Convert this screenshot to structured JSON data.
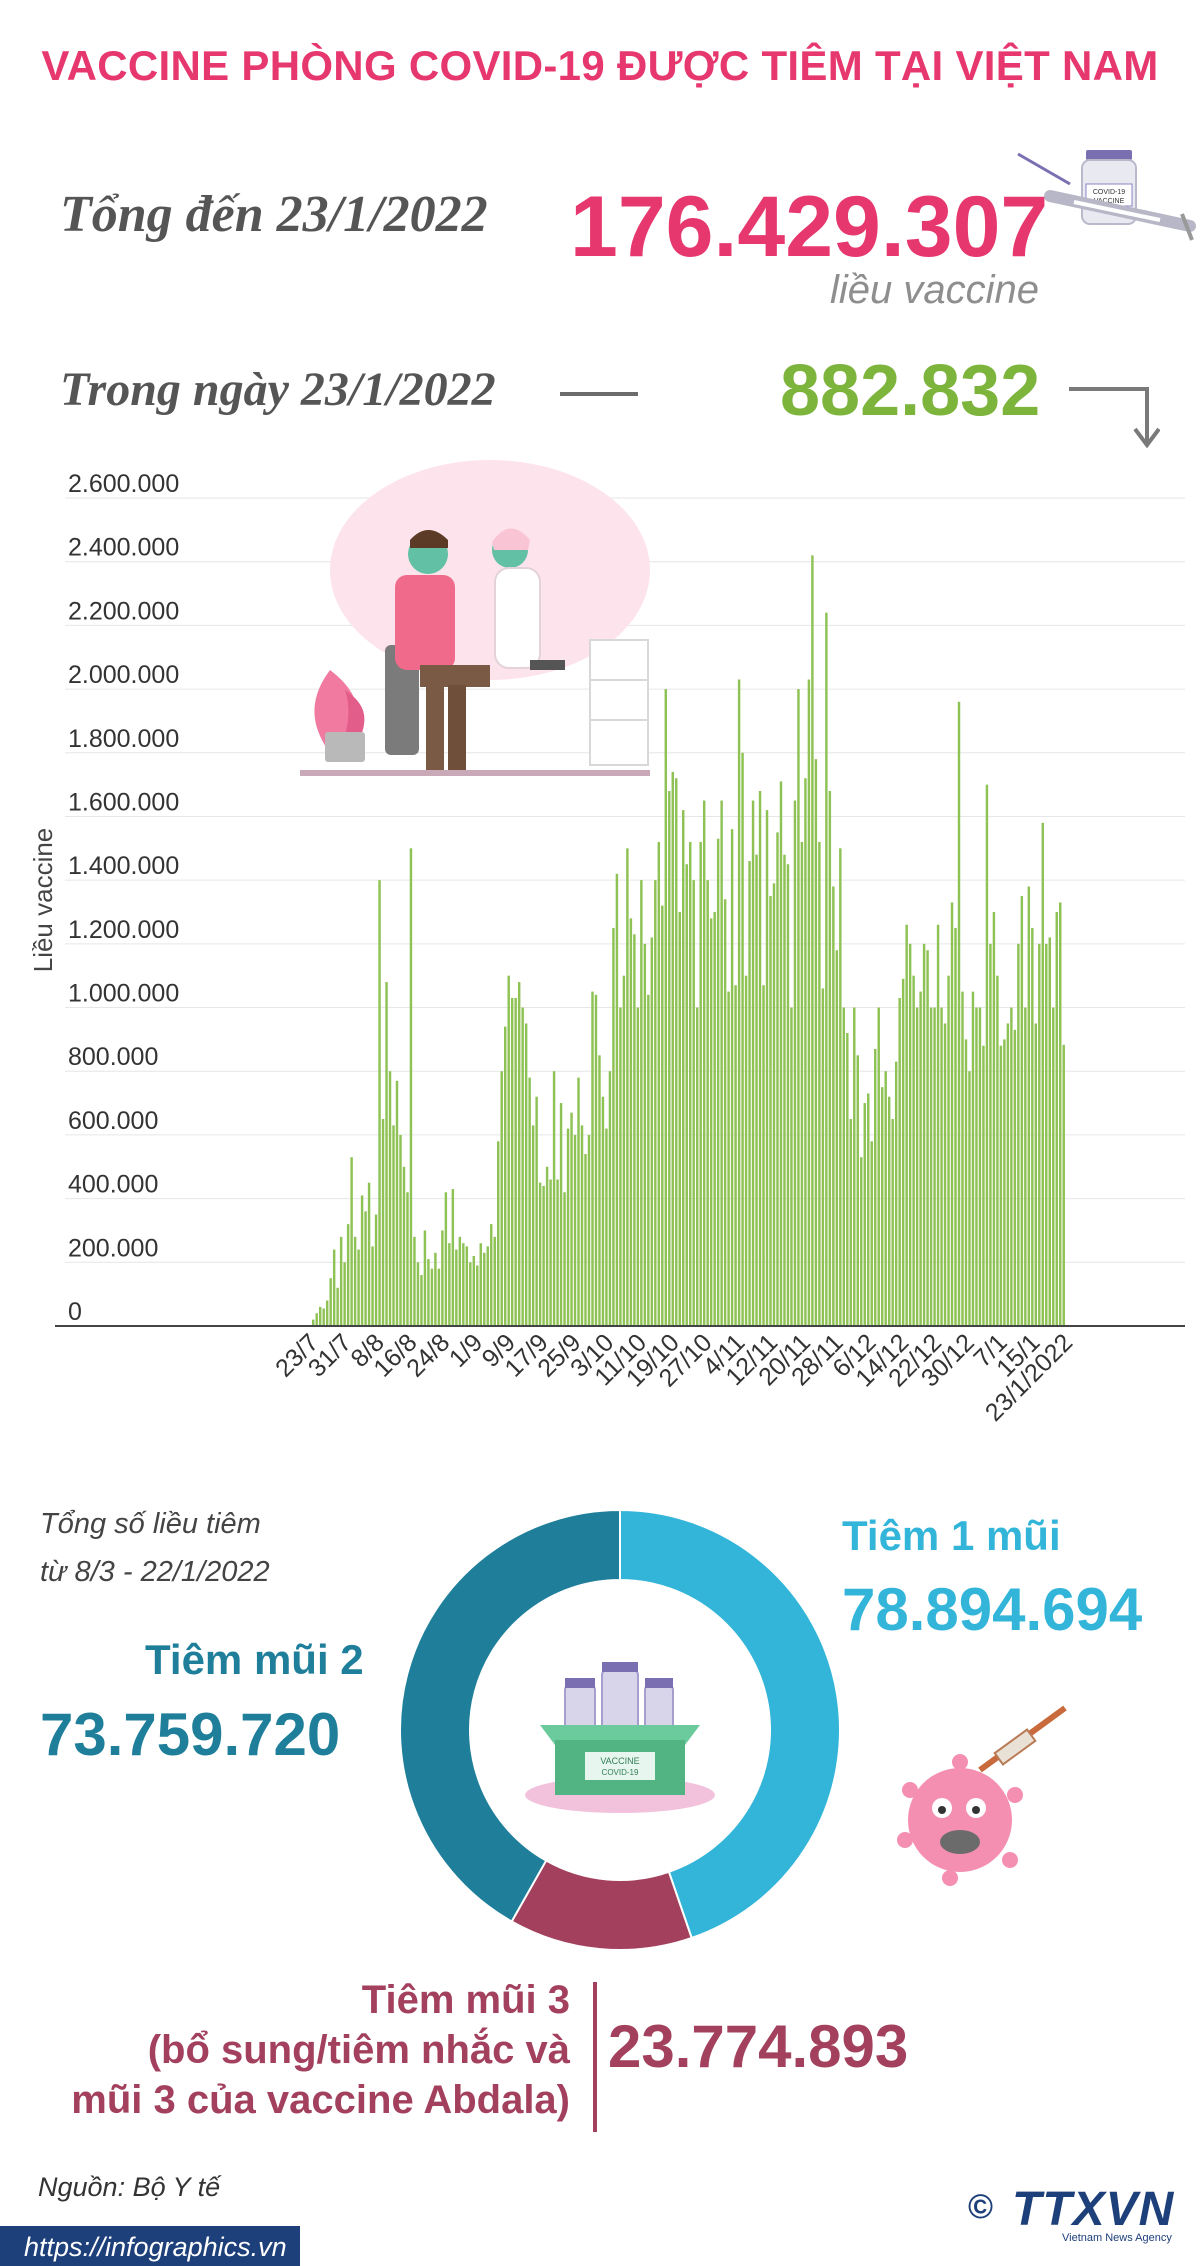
{
  "header": {
    "title": "VACCINE PHÒNG COVID-19 ĐƯỢC TIÊM TẠI VIỆT NAM",
    "total_label": "Tổng đến 23/1/2022",
    "total_value": "176.429.307",
    "total_unit": "liều vaccine",
    "day_label": "Trong ngày 23/1/2022",
    "day_value": "882.832"
  },
  "colors": {
    "title": "#e6386f",
    "bar": "#8ec254",
    "dose1": "#33b5d9",
    "dose2": "#1f7f9b",
    "dose3": "#a2405e"
  },
  "chart_data": [
    {
      "type": "bar",
      "ylabel": "Liều vaccine",
      "ylim": [
        0,
        2600000
      ],
      "yticks": [
        "0",
        "200.000",
        "400.000",
        "600.000",
        "800.000",
        "1.000.000",
        "1.200.000",
        "1.400.000",
        "1.600.000",
        "1.800.000",
        "2.000.000",
        "2.200.000",
        "2.400.000",
        "2.600.000"
      ],
      "x_tick_labels": [
        "23/7",
        "31/7",
        "8/8",
        "16/8",
        "24/8",
        "1/9",
        "9/9",
        "17/9",
        "25/9",
        "3/10",
        "11/10",
        "19/10",
        "27/10",
        "4/11",
        "12/11",
        "20/11",
        "28/11",
        "6/12",
        "14/12",
        "22/12",
        "30/12",
        "7/1",
        "15/1",
        "23/1/2022"
      ],
      "x_start": "23/7/2021",
      "x_end": "23/1/2022",
      "grid": true,
      "values": [
        20000,
        40000,
        60000,
        55000,
        80000,
        150000,
        240000,
        120000,
        280000,
        200000,
        320000,
        530000,
        280000,
        240000,
        410000,
        360000,
        450000,
        250000,
        350000,
        1400000,
        650000,
        1080000,
        800000,
        630000,
        770000,
        600000,
        500000,
        420000,
        1500000,
        280000,
        200000,
        160000,
        300000,
        210000,
        180000,
        230000,
        180000,
        300000,
        420000,
        260000,
        430000,
        240000,
        280000,
        260000,
        250000,
        200000,
        220000,
        190000,
        260000,
        230000,
        250000,
        320000,
        280000,
        580000,
        800000,
        940000,
        1100000,
        1030000,
        1030000,
        1080000,
        1000000,
        950000,
        780000,
        630000,
        720000,
        450000,
        440000,
        500000,
        460000,
        800000,
        460000,
        700000,
        420000,
        620000,
        670000,
        600000,
        780000,
        630000,
        540000,
        600000,
        1050000,
        1040000,
        850000,
        720000,
        620000,
        800000,
        1250000,
        1420000,
        1000000,
        1100000,
        1500000,
        1280000,
        1230000,
        1000000,
        1400000,
        1200000,
        1040000,
        1220000,
        1400000,
        1520000,
        1320000,
        2000000,
        1680000,
        1740000,
        1720000,
        1300000,
        1620000,
        1450000,
        1520000,
        1400000,
        1000000,
        1520000,
        1650000,
        1400000,
        1280000,
        1300000,
        1530000,
        1650000,
        1340000,
        1050000,
        1560000,
        1070000,
        2030000,
        1800000,
        1100000,
        1460000,
        1650000,
        1480000,
        1680000,
        1070000,
        1620000,
        1350000,
        1390000,
        1550000,
        1710000,
        1480000,
        1450000,
        1000000,
        1650000,
        2000000,
        1520000,
        1720000,
        2030000,
        2420000,
        1780000,
        1520000,
        1060000,
        2240000,
        1680000,
        1380000,
        1180000,
        1500000,
        1000000,
        920000,
        650000,
        1000000,
        850000,
        530000,
        700000,
        730000,
        580000,
        870000,
        1000000,
        750000,
        800000,
        720000,
        650000,
        830000,
        1030000,
        1090000,
        1260000,
        1200000,
        1100000,
        1000000,
        1050000,
        1200000,
        1180000,
        1000000,
        1000000,
        1260000,
        1000000,
        950000,
        1100000,
        1330000,
        1250000,
        1960000,
        1050000,
        900000,
        800000,
        1050000,
        1000000,
        1000000,
        880000,
        1700000,
        1200000,
        1300000,
        1100000,
        880000,
        900000,
        950000,
        1000000,
        930000,
        1200000,
        1350000,
        1000000,
        1380000,
        1250000,
        950000,
        1200000,
        1580000,
        1200000,
        1220000,
        1000000,
        1300000,
        1330000,
        882832
      ]
    },
    {
      "type": "pie",
      "title": "Tổng số liều tiêm từ 8/3 - 22/1/2022",
      "categories": [
        "Tiêm 1 mũi",
        "Tiêm mũi 2",
        "Tiêm mũi 3 (bổ sung/tiêm nhắc và mũi 3 của vaccine Abdala)"
      ],
      "values": [
        78894694,
        73759720,
        23774893
      ]
    }
  ],
  "donut": {
    "note_line1": "Tổng số liều tiêm",
    "note_line2": "từ 8/3 - 22/1/2022",
    "dose1_label": "Tiêm 1 mũi",
    "dose1_value": "78.894.694",
    "dose2_label": "Tiêm mũi 2",
    "dose2_value": "73.759.720",
    "dose3_label_line1": "Tiêm mũi 3",
    "dose3_label_line2": "(bổ sung/tiêm nhắc và",
    "dose3_label_line3": "mũi 3 của vaccine Abdala)",
    "dose3_value": "23.774.893",
    "box_label": "VACCINE",
    "box_sub": "COVID-19"
  },
  "footer": {
    "source": "Nguồn: Bộ Y tế",
    "url": "https://infographics.vn",
    "copyright": "©",
    "logo": "TTXVN",
    "logo_sub": "Vietnam News Agency"
  }
}
